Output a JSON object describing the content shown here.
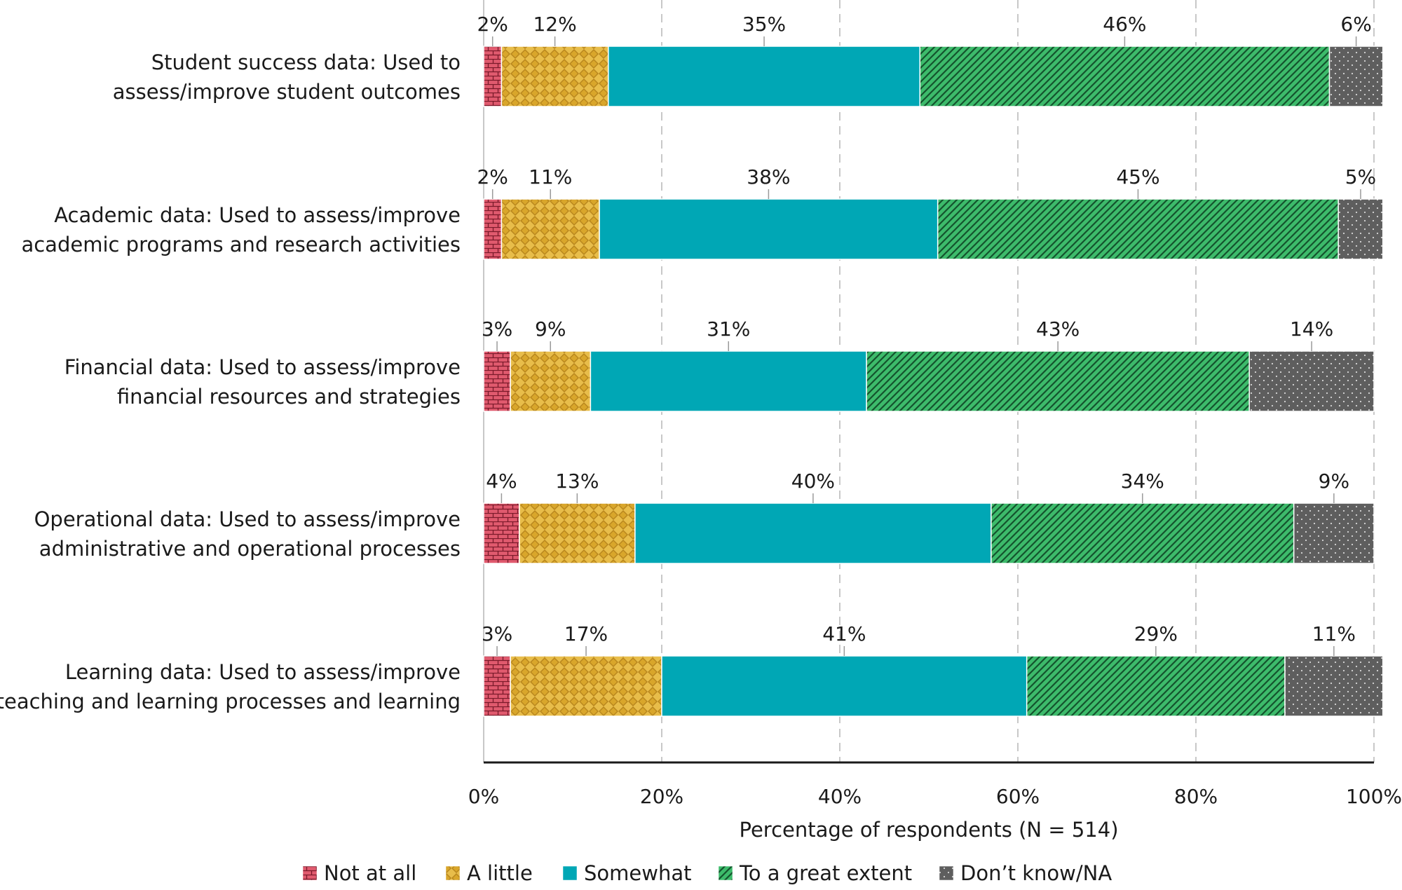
{
  "chart_data": {
    "type": "bar",
    "orientation": "horizontal",
    "stacked": true,
    "categories": [
      [
        "Student success data: Used to",
        "assess/improve student outcomes"
      ],
      [
        "Academic data: Used to assess/improve",
        "academic programs and research activities"
      ],
      [
        "Financial data: Used to assess/improve",
        "financial resources and strategies"
      ],
      [
        "Operational data: Used to assess/improve",
        "administrative and operational processes"
      ],
      [
        "Learning data: Used to assess/improve",
        "teaching and learning processes and learning"
      ]
    ],
    "series": [
      {
        "name": "Not at all",
        "values": [
          2,
          2,
          3,
          4,
          3
        ],
        "color": "#e05a6e",
        "pattern": "brick"
      },
      {
        "name": "A little",
        "values": [
          12,
          11,
          9,
          13,
          17
        ],
        "color": "#d9a62b",
        "pattern": "checker"
      },
      {
        "name": "Somewhat",
        "values": [
          35,
          38,
          31,
          40,
          41
        ],
        "color": "#00a7b5",
        "pattern": "solid"
      },
      {
        "name": "To a great extent",
        "values": [
          46,
          45,
          43,
          34,
          29
        ],
        "color": "#3dbb6b",
        "pattern": "diagonal"
      },
      {
        "name": "Don’t know/NA",
        "values": [
          6,
          5,
          14,
          9,
          11
        ],
        "color": "#5e5e5e",
        "pattern": "dots"
      }
    ],
    "data_labels": [
      [
        "2%",
        "12%",
        "35%",
        "46%",
        "6%"
      ],
      [
        "2%",
        "11%",
        "38%",
        "45%",
        "5%"
      ],
      [
        "3%",
        "9%",
        "31%",
        "43%",
        "14%"
      ],
      [
        "4%",
        "13%",
        "40%",
        "34%",
        "9%"
      ],
      [
        "3%",
        "17%",
        "41%",
        "29%",
        "11%"
      ]
    ],
    "xlabel": "Percentage of respondents (N = 514)",
    "ylabel": "",
    "xlim": [
      0,
      100
    ],
    "xticks": [
      "0%",
      "20%",
      "40%",
      "60%",
      "80%",
      "100%"
    ],
    "grid": "vertical dashed",
    "legend": "bottom"
  }
}
